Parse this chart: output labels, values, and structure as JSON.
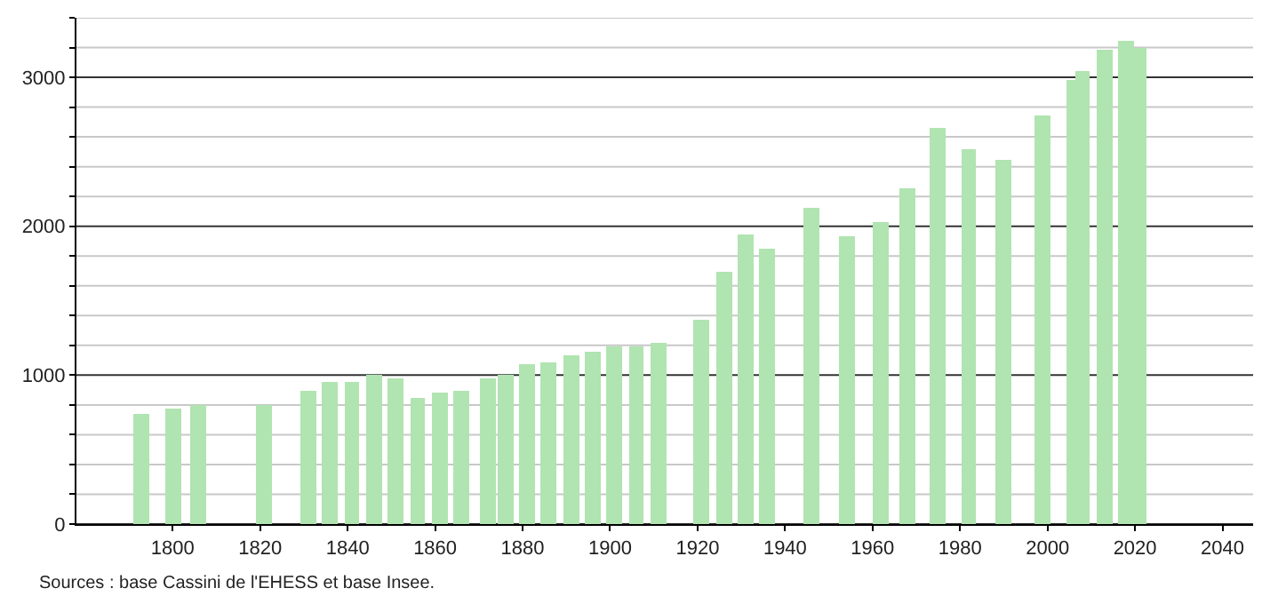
{
  "chart_data": {
    "type": "bar",
    "x": [
      1793,
      1800,
      1806,
      1821,
      1831,
      1836,
      1841,
      1846,
      1851,
      1856,
      1861,
      1866,
      1872,
      1876,
      1881,
      1886,
      1891,
      1896,
      1901,
      1906,
      1911,
      1921,
      1926,
      1931,
      1936,
      1946,
      1954,
      1962,
      1968,
      1975,
      1982,
      1990,
      1999,
      2006,
      2008,
      2013,
      2018,
      2021
    ],
    "values": [
      740,
      770,
      800,
      800,
      900,
      960,
      960,
      1000,
      980,
      850,
      880,
      900,
      980,
      1000,
      1070,
      1080,
      1130,
      1160,
      1190,
      1190,
      1220,
      1370,
      1700,
      1950,
      1850,
      2120,
      1930,
      2030,
      2260,
      2660,
      2520,
      2450,
      2740,
      2980,
      3040,
      3180,
      3250,
      3200
    ],
    "color": "#b0e4b0",
    "xlim": [
      1778,
      2047
    ],
    "xticks": [
      1800,
      1820,
      1840,
      1860,
      1880,
      1900,
      1920,
      1940,
      1960,
      1980,
      2000,
      2020,
      2040
    ],
    "ylim": [
      0,
      3400
    ],
    "yticks": [
      0,
      {
        "value": 200,
        "label": null
      },
      {
        "value": 400,
        "label": null
      },
      {
        "value": 600,
        "label": null
      },
      {
        "value": 800,
        "label": null
      },
      1000,
      {
        "value": 1200,
        "label": null
      },
      {
        "value": 1400,
        "label": null
      },
      {
        "value": 1600,
        "label": null
      },
      {
        "value": 1800,
        "label": null
      },
      2000,
      {
        "value": 2200,
        "label": null
      },
      {
        "value": 2400,
        "label": null
      },
      {
        "value": 2600,
        "label": null
      },
      {
        "value": 2800,
        "label": null
      },
      3000,
      {
        "value": 3200,
        "label": null
      },
      {
        "value": 3400,
        "label": null
      }
    ],
    "grid": "y",
    "annotations": [
      "Sources : base Cassini de l'EHESS et base Insee."
    ]
  }
}
